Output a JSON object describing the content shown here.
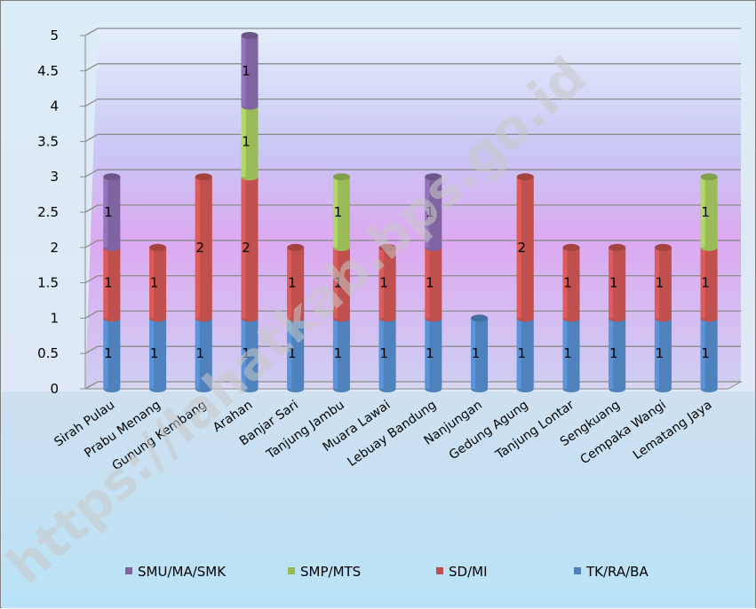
{
  "chart_data": {
    "type": "bar",
    "stacked": true,
    "categories": [
      "Sirah Pulau",
      "Prabu Menang",
      "Gunung Kembang",
      "Arahan",
      "Banjar Sari",
      "Tanjung Jambu",
      "Muara Lawai",
      "Lebuay Bandung",
      "Nanjungan",
      "Gedung Agung",
      "Tanjung Lontar",
      "Sengkuang",
      "Cempaka Wangi",
      "Lematang Jaya"
    ],
    "series": [
      {
        "name": "TK/RA/BA",
        "color": "#4f81bd",
        "values": [
          1,
          1,
          1,
          1,
          1,
          1,
          1,
          1,
          1,
          1,
          1,
          1,
          1,
          1
        ]
      },
      {
        "name": "SD/MI",
        "color": "#c0504d",
        "values": [
          1,
          1,
          2,
          2,
          1,
          1,
          1,
          1,
          0,
          2,
          1,
          1,
          1,
          1
        ]
      },
      {
        "name": "SMP/MTS",
        "color": "#9bbb59",
        "values": [
          0,
          0,
          0,
          1,
          0,
          1,
          0,
          0,
          0,
          0,
          0,
          0,
          0,
          1
        ]
      },
      {
        "name": "SMU/MA/SMK",
        "color": "#8064a2",
        "values": [
          1,
          0,
          0,
          1,
          0,
          0,
          0,
          1,
          0,
          0,
          0,
          0,
          0,
          0
        ]
      }
    ],
    "legend_order": [
      "SMU/MA/SMK",
      "SMP/MTS",
      "SD/MI",
      "TK/RA/BA"
    ],
    "yticks": [
      "0",
      "0.5",
      "1",
      "1.5",
      "2",
      "2.5",
      "3",
      "3.5",
      "4",
      "4.5",
      "5"
    ],
    "ylim": [
      0,
      5
    ],
    "grid": true,
    "legend_position": "bottom",
    "data_labels": true
  },
  "watermark": "https://lahatkab.bps.go.id"
}
